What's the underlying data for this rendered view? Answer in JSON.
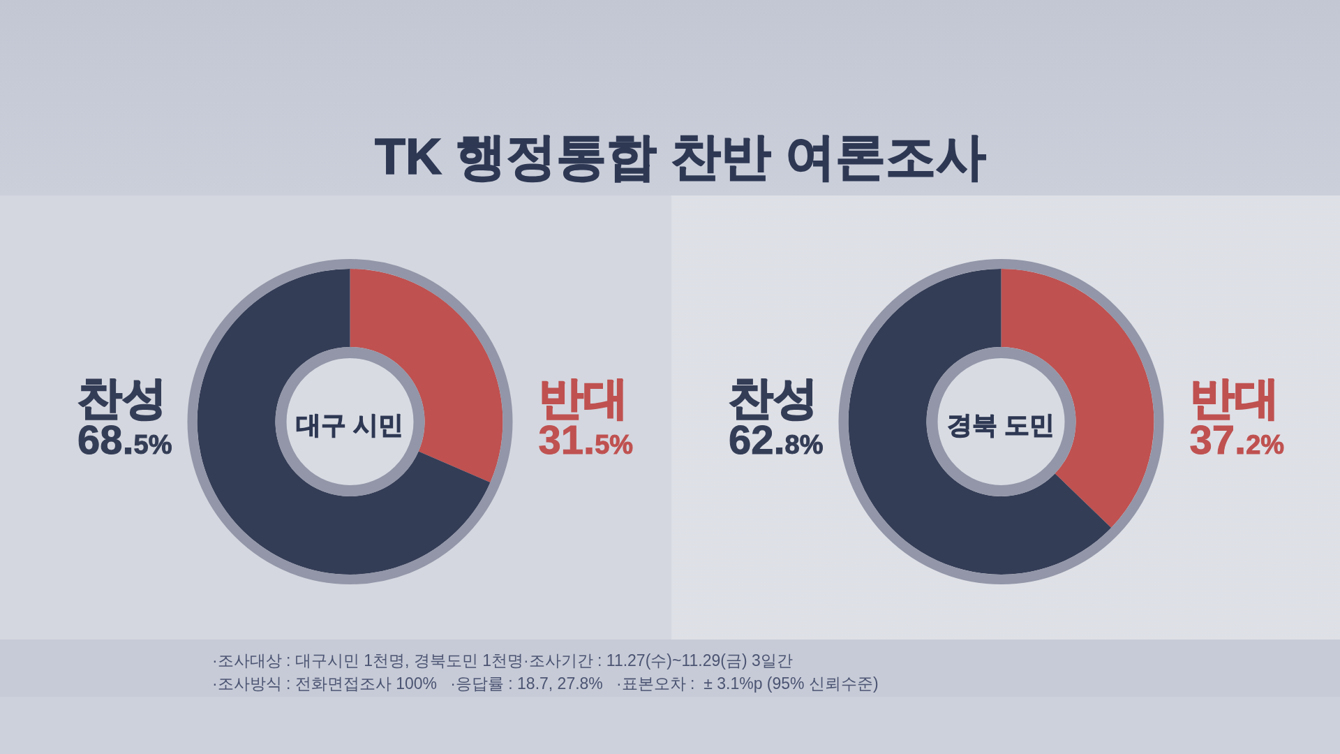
{
  "chart_data": [
    {
      "type": "other",
      "title": "TK 행정통합 찬반 여론조사"
    },
    {
      "type": "donut",
      "title": "대구 시민",
      "categories": [
        "반대",
        "찬성"
      ],
      "values": [
        31.5,
        68.5
      ],
      "colors": [
        "#bf5150",
        "#343d56"
      ],
      "value_labels": [
        "31.5%",
        "68.5%"
      ]
    },
    {
      "type": "donut",
      "title": "경북 도민",
      "categories": [
        "반대",
        "찬성"
      ],
      "values": [
        37.2,
        62.8
      ],
      "colors": [
        "#bf5150",
        "#343d56"
      ],
      "value_labels": [
        "37.2%",
        "62.8%"
      ]
    },
    {
      "type": "other",
      "annotations": [
        "·조사대상 : 대구시민 1천명, 경북도민 1천명·조사기간 : 11.27(수)~11.29(금) 3일간",
        "·조사방식 : 전화면접조사 100%   ·응답률 : 18.7, 27.8%   ·표본오차 :  ± 3.1%p (95% 신뢰수준)"
      ]
    }
  ]
}
